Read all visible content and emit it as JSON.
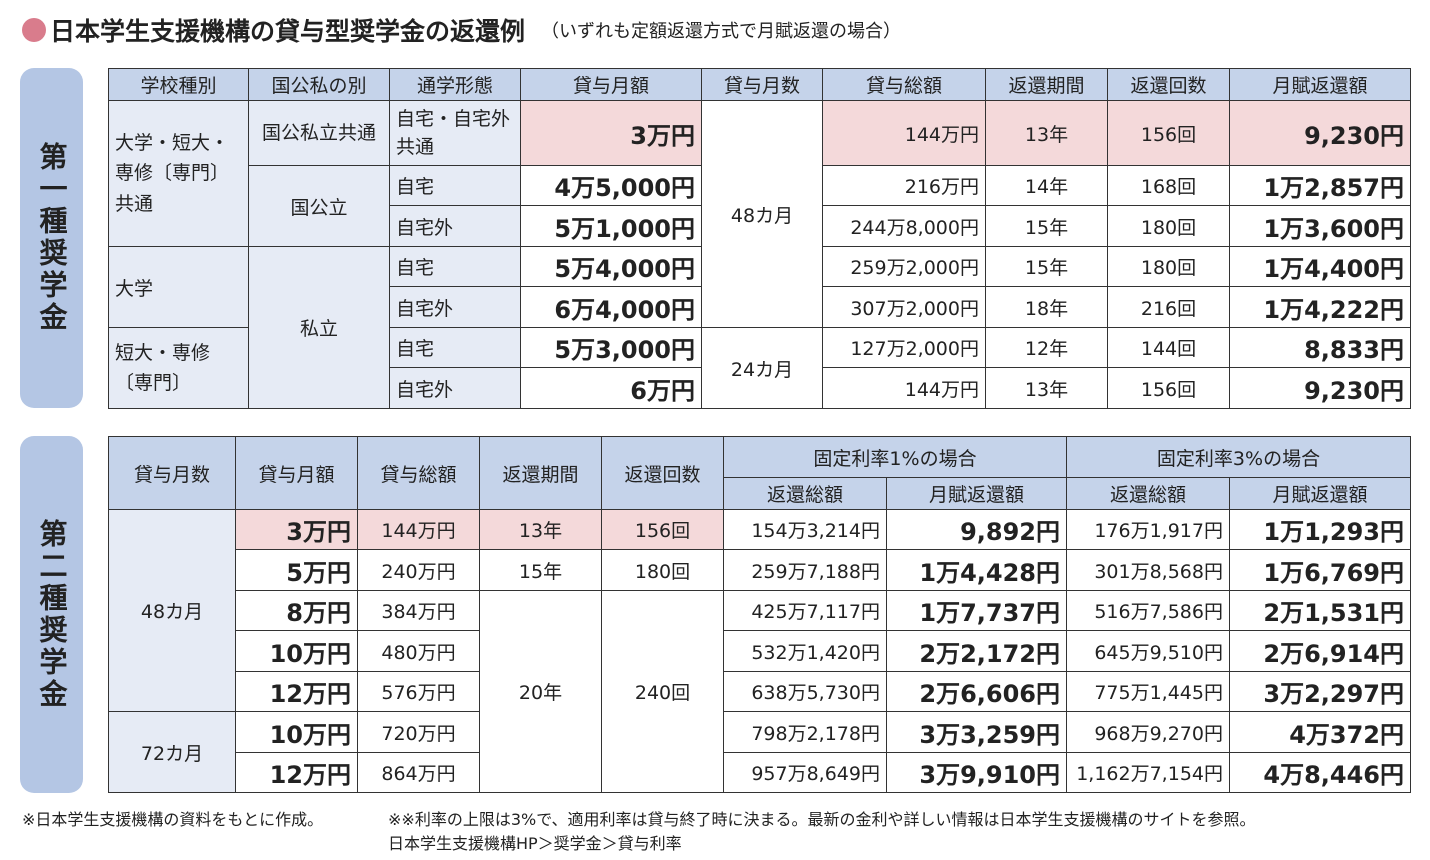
{
  "title": "日本学生支援機構の貸与型奨学金の返還例",
  "subtitle": "（いずれも定額返還方式で月賦返還の場合）",
  "colors": {
    "header": "#c5d3ea",
    "label_bg": "#e6ebf5",
    "highlight": "#f4d9da",
    "pill": "#b4c6e4",
    "bullet": "#d97c8c"
  },
  "type1": {
    "label": "第一種奨学金",
    "headers": [
      "学校種別",
      "国公私の別",
      "通学形態",
      "貸与月額",
      "貸与月数",
      "貸与総額",
      "返還期間",
      "返還回数",
      "月賦返還額"
    ],
    "school": [
      "大学・短大・専修〔専門〕共通",
      "大学",
      "短大・専修〔専門〕"
    ],
    "kind": [
      "国公私立共通",
      "国公立",
      "私立"
    ],
    "months": [
      "48カ月",
      "24カ月"
    ],
    "rows": [
      {
        "commute": "自宅・自宅外共通",
        "monthly": "3万円",
        "total": "144万円",
        "period": "13年",
        "count": "156回",
        "repay": "9,230円"
      },
      {
        "commute": "自宅",
        "monthly": "4万5,000円",
        "total": "216万円",
        "period": "14年",
        "count": "168回",
        "repay": "1万2,857円"
      },
      {
        "commute": "自宅外",
        "monthly": "5万1,000円",
        "total": "244万8,000円",
        "period": "15年",
        "count": "180回",
        "repay": "1万3,600円"
      },
      {
        "commute": "自宅",
        "monthly": "5万4,000円",
        "total": "259万2,000円",
        "period": "15年",
        "count": "180回",
        "repay": "1万4,400円"
      },
      {
        "commute": "自宅外",
        "monthly": "6万4,000円",
        "total": "307万2,000円",
        "period": "18年",
        "count": "216回",
        "repay": "1万4,222円"
      },
      {
        "commute": "自宅",
        "monthly": "5万3,000円",
        "total": "127万2,000円",
        "period": "12年",
        "count": "144回",
        "repay": "8,833円"
      },
      {
        "commute": "自宅外",
        "monthly": "6万円",
        "total": "144万円",
        "period": "13年",
        "count": "156回",
        "repay": "9,230円"
      }
    ]
  },
  "type2": {
    "label": "第二種奨学金",
    "headers": [
      "貸与月数",
      "貸与月額",
      "貸与総額",
      "返還期間",
      "返還回数",
      "固定利率1%の場合",
      "固定利率3%の場合",
      "返還総額",
      "月賦返還額"
    ],
    "months": [
      "48カ月",
      "72カ月"
    ],
    "periods": [
      "13年",
      "15年",
      "20年"
    ],
    "counts": [
      "156回",
      "180回",
      "240回"
    ],
    "rows": [
      {
        "monthly": "3万円",
        "total": "144万円",
        "t1": "154万3,214円",
        "m1": "9,892円",
        "t3": "176万1,917円",
        "m3": "1万1,293円"
      },
      {
        "monthly": "5万円",
        "total": "240万円",
        "t1": "259万7,188円",
        "m1": "1万4,428円",
        "t3": "301万8,568円",
        "m3": "1万6,769円"
      },
      {
        "monthly": "8万円",
        "total": "384万円",
        "t1": "425万7,117円",
        "m1": "1万7,737円",
        "t3": "516万7,586円",
        "m3": "2万1,531円"
      },
      {
        "monthly": "10万円",
        "total": "480万円",
        "t1": "532万1,420円",
        "m1": "2万2,172円",
        "t3": "645万9,510円",
        "m3": "2万6,914円"
      },
      {
        "monthly": "12万円",
        "total": "576万円",
        "t1": "638万5,730円",
        "m1": "2万6,606円",
        "t3": "775万1,445円",
        "m3": "3万2,297円"
      },
      {
        "monthly": "10万円",
        "total": "720万円",
        "t1": "798万2,178円",
        "m1": "3万3,259円",
        "t3": "968万9,270円",
        "m3": "4万372円"
      },
      {
        "monthly": "12万円",
        "total": "864万円",
        "t1": "957万8,649円",
        "m1": "3万9,910円",
        "t3": "1,162万7,154円",
        "m3": "4万8,446円"
      }
    ]
  },
  "notes": {
    "source": "※日本学生支援機構の資料をもとに作成。",
    "rate": "※※利率の上限は3%で、適用利率は貸与終了時に決まる。最新の金利や詳しい情報は日本学生支援機構のサイトを参照。",
    "path": "日本学生支援機構HP＞奨学金＞貸与利率"
  }
}
